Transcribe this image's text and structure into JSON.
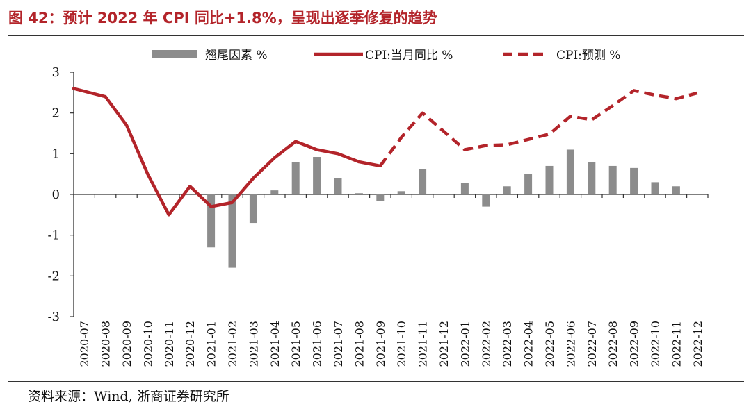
{
  "header": {
    "title": "图 42：预计 2022 年 CPI 同比+1.8%，呈现出逐季修复的趋势"
  },
  "footer": {
    "source": "资料来源：Wind, 浙商证券研究所"
  },
  "colors": {
    "bar": "#8c8c8c",
    "line": "#b3242a",
    "title": "#b3242a"
  },
  "chart_data": {
    "type": "bar+line",
    "title": "预计 2022 年 CPI 同比+1.8%，呈现出逐季修复的趋势",
    "xlabel": "",
    "ylabel": "",
    "ylim": [
      -3,
      3
    ],
    "yticks": [
      3,
      2,
      1,
      0,
      -1,
      -2,
      -3
    ],
    "legend_position": "top",
    "grid": false,
    "categories": [
      "2020-07",
      "2020-08",
      "2020-09",
      "2020-10",
      "2020-11",
      "2020-12",
      "2021-01",
      "2021-02",
      "2021-03",
      "2021-04",
      "2021-05",
      "2021-06",
      "2021-07",
      "2021-08",
      "2021-09",
      "2021-10",
      "2021-11",
      "2021-12",
      "2022-01",
      "2022-02",
      "2022-03",
      "2022-04",
      "2022-05",
      "2022-06",
      "2022-07",
      "2022-08",
      "2022-09",
      "2022-10",
      "2022-11",
      "2022-12"
    ],
    "series": [
      {
        "name": "翘尾因素 %",
        "kind": "bar",
        "values": [
          null,
          null,
          null,
          null,
          null,
          null,
          -1.3,
          -1.8,
          -0.7,
          0.1,
          0.8,
          0.92,
          0.4,
          0.03,
          -0.17,
          0.08,
          0.62,
          null,
          0.28,
          -0.3,
          0.2,
          0.5,
          0.7,
          1.1,
          0.8,
          0.7,
          0.65,
          0.3,
          0.2,
          null
        ]
      },
      {
        "name": "CPI:当月同比 %",
        "kind": "line",
        "style": "solid",
        "values": [
          2.7,
          2.4,
          1.7,
          0.5,
          -0.5,
          0.2,
          -0.3,
          -0.2,
          0.4,
          0.9,
          1.3,
          1.1,
          1.0,
          0.8,
          0.7,
          null,
          null,
          null,
          null,
          null,
          null,
          null,
          null,
          null,
          null,
          null,
          null,
          null,
          null,
          null
        ]
      },
      {
        "name": "CPI:预测 %",
        "kind": "line",
        "style": "dashed",
        "values": [
          null,
          null,
          null,
          null,
          null,
          null,
          null,
          null,
          null,
          null,
          null,
          null,
          null,
          null,
          0.7,
          1.4,
          2.0,
          1.55,
          1.1,
          1.2,
          1.22,
          1.35,
          1.48,
          1.92,
          1.83,
          2.18,
          2.55,
          2.44,
          2.35,
          2.49
        ]
      }
    ]
  }
}
